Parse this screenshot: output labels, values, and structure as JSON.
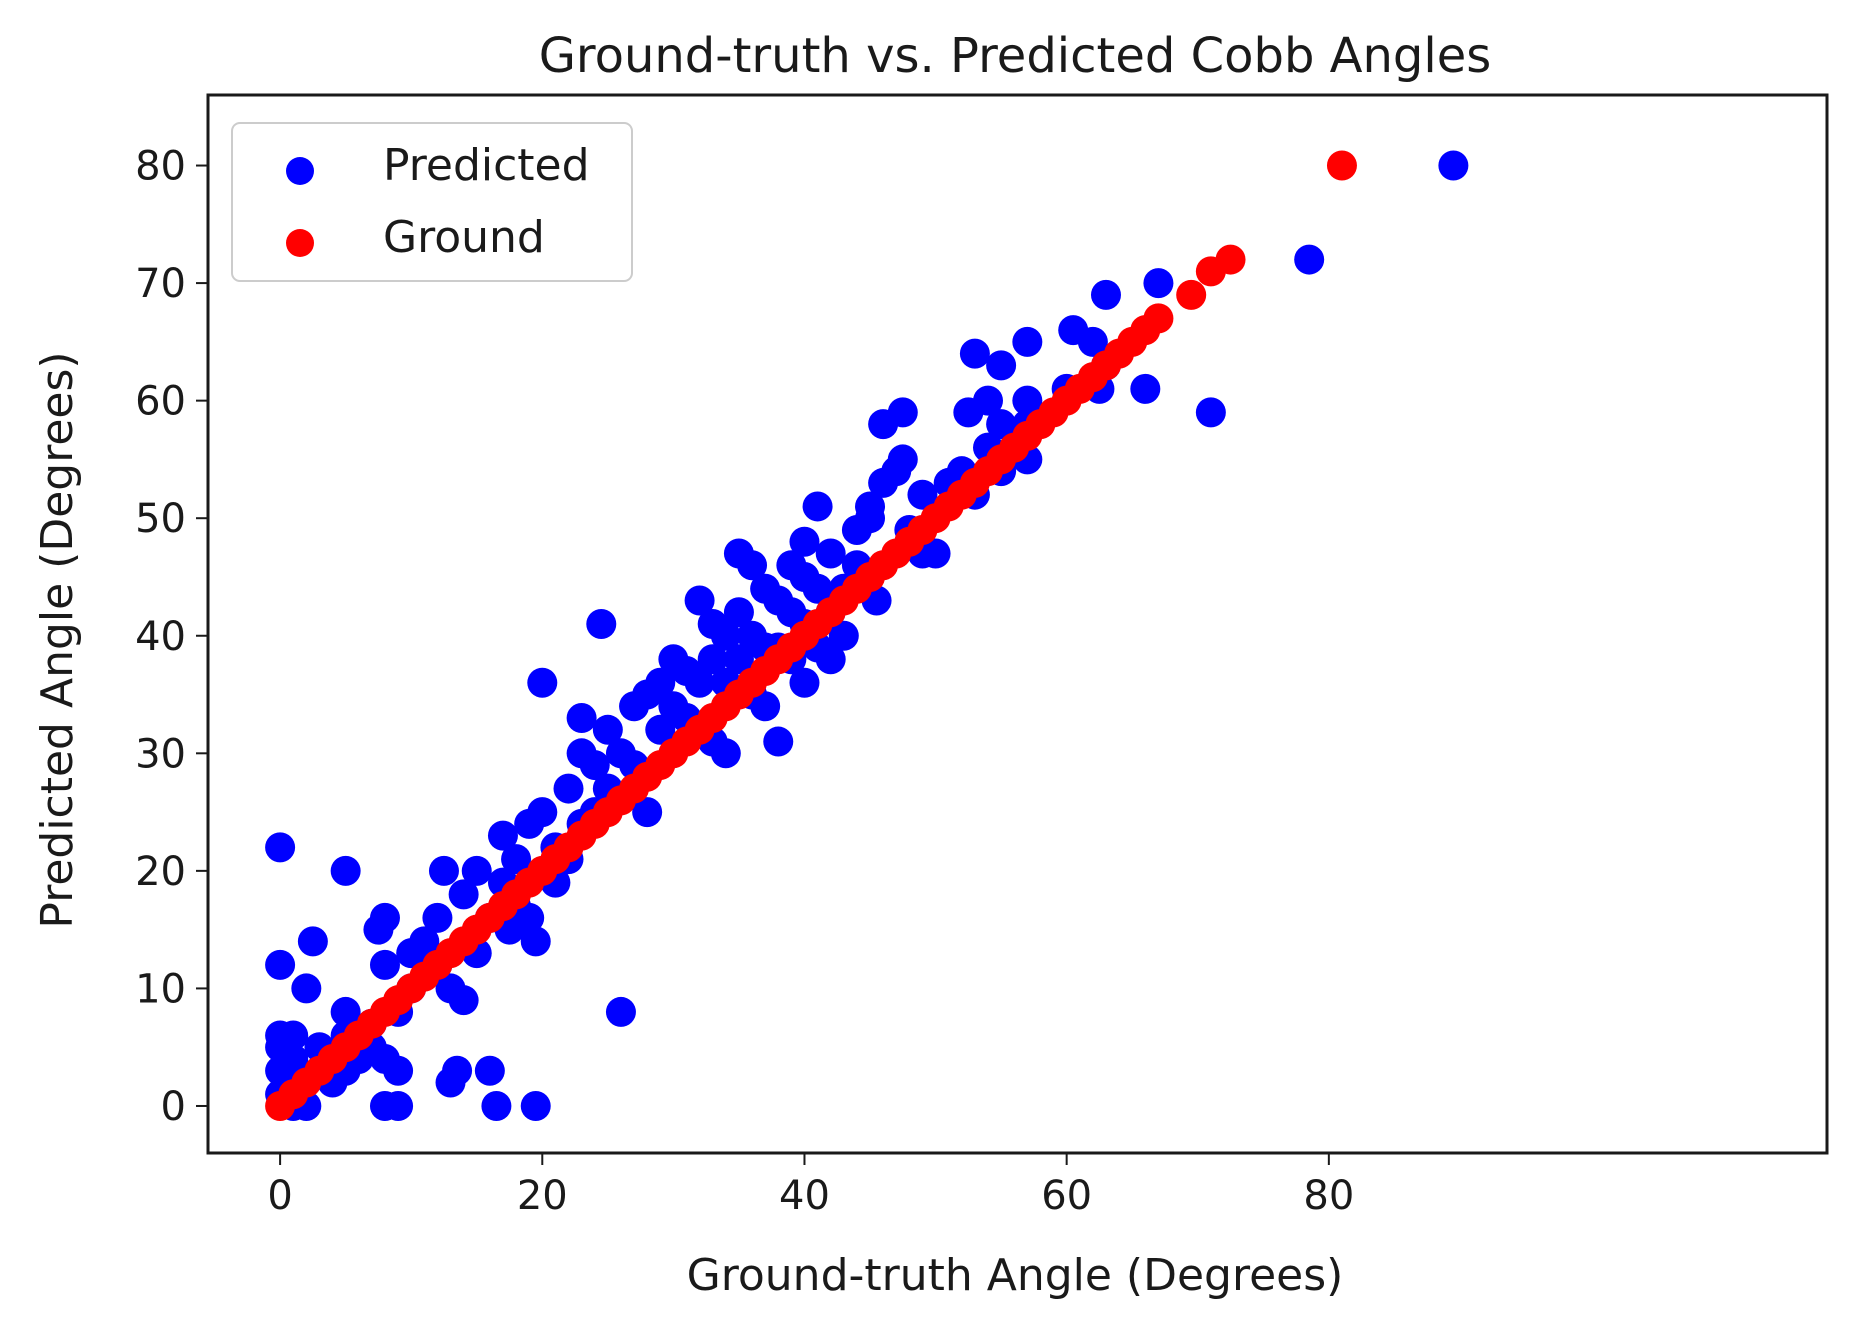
{
  "chart_data": {
    "type": "scatter",
    "title": "Ground-truth vs. Predicted Cobb Angles",
    "xlabel": "Ground-truth Angle (Degrees)",
    "ylabel": "Predicted Angle (Degrees)",
    "xlim": [
      -5.5,
      118
    ],
    "ylim": [
      -4,
      86
    ],
    "xticks": [
      0,
      20,
      40,
      60,
      80
    ],
    "yticks": [
      0,
      10,
      20,
      30,
      40,
      50,
      60,
      70,
      80
    ],
    "grid": false,
    "legend_position": "top-left",
    "series": [
      {
        "name": "Predicted",
        "color": "#0000ff",
        "points": [
          [
            0,
            22
          ],
          [
            0,
            12
          ],
          [
            0,
            6
          ],
          [
            0,
            5
          ],
          [
            0,
            3
          ],
          [
            0,
            1
          ],
          [
            1,
            6
          ],
          [
            1,
            4
          ],
          [
            1,
            2
          ],
          [
            1,
            0
          ],
          [
            2,
            0
          ],
          [
            2,
            10
          ],
          [
            2.5,
            14
          ],
          [
            3,
            5
          ],
          [
            3,
            3
          ],
          [
            4,
            2
          ],
          [
            5,
            20
          ],
          [
            5,
            8
          ],
          [
            5,
            6
          ],
          [
            5,
            3
          ],
          [
            6,
            4
          ],
          [
            7,
            7
          ],
          [
            7,
            5
          ],
          [
            7.5,
            15
          ],
          [
            8,
            16
          ],
          [
            8,
            12
          ],
          [
            8,
            4
          ],
          [
            8,
            0
          ],
          [
            9,
            0
          ],
          [
            9,
            3
          ],
          [
            9,
            8
          ],
          [
            10,
            13
          ],
          [
            10,
            10
          ],
          [
            11,
            14
          ],
          [
            12,
            16
          ],
          [
            12,
            12
          ],
          [
            12.5,
            20
          ],
          [
            13,
            10
          ],
          [
            13,
            2
          ],
          [
            13.5,
            3
          ],
          [
            14,
            9
          ],
          [
            14,
            18
          ],
          [
            15,
            20
          ],
          [
            15,
            13
          ],
          [
            16,
            16
          ],
          [
            16,
            3
          ],
          [
            16.5,
            0
          ],
          [
            17,
            23
          ],
          [
            17,
            19
          ],
          [
            17.5,
            15
          ],
          [
            18,
            21
          ],
          [
            18,
            17
          ],
          [
            19,
            24
          ],
          [
            19,
            16
          ],
          [
            19.5,
            14
          ],
          [
            19.5,
            0
          ],
          [
            20,
            36
          ],
          [
            20,
            25
          ],
          [
            21,
            22
          ],
          [
            21,
            19
          ],
          [
            22,
            27
          ],
          [
            22,
            21
          ],
          [
            23,
            30
          ],
          [
            23,
            24
          ],
          [
            23,
            33
          ],
          [
            24,
            29
          ],
          [
            24,
            25
          ],
          [
            24.5,
            41
          ],
          [
            25,
            32
          ],
          [
            25,
            27
          ],
          [
            26,
            30
          ],
          [
            26,
            8
          ],
          [
            27,
            34
          ],
          [
            27,
            29
          ],
          [
            28,
            35
          ],
          [
            28,
            25
          ],
          [
            29,
            36
          ],
          [
            29,
            32
          ],
          [
            30,
            38
          ],
          [
            30,
            34
          ],
          [
            31,
            37
          ],
          [
            31,
            33
          ],
          [
            32,
            43
          ],
          [
            32,
            36
          ],
          [
            33,
            41
          ],
          [
            33,
            38
          ],
          [
            33,
            31
          ],
          [
            34,
            40
          ],
          [
            34,
            36
          ],
          [
            34,
            30
          ],
          [
            35,
            47
          ],
          [
            35,
            42
          ],
          [
            35,
            38
          ],
          [
            36,
            46
          ],
          [
            36,
            40
          ],
          [
            36,
            35
          ],
          [
            37,
            44
          ],
          [
            37,
            39
          ],
          [
            37,
            34
          ],
          [
            38,
            43
          ],
          [
            38,
            39
          ],
          [
            38,
            31
          ],
          [
            39,
            46
          ],
          [
            39,
            42
          ],
          [
            39,
            38
          ],
          [
            40,
            48
          ],
          [
            40,
            45
          ],
          [
            40,
            41
          ],
          [
            40,
            36
          ],
          [
            41,
            51
          ],
          [
            41,
            44
          ],
          [
            41,
            39
          ],
          [
            42,
            47
          ],
          [
            42,
            42
          ],
          [
            42,
            38
          ],
          [
            43,
            44
          ],
          [
            43,
            40
          ],
          [
            44,
            46
          ],
          [
            44,
            49
          ],
          [
            45,
            50
          ],
          [
            45,
            51
          ],
          [
            45.5,
            43
          ],
          [
            46,
            58
          ],
          [
            46,
            53
          ],
          [
            47,
            54
          ],
          [
            47.5,
            59
          ],
          [
            47.5,
            55
          ],
          [
            48,
            49
          ],
          [
            49,
            52
          ],
          [
            49,
            47
          ],
          [
            50,
            47
          ],
          [
            51,
            53
          ],
          [
            52,
            54
          ],
          [
            52.5,
            59
          ],
          [
            53,
            64
          ],
          [
            53,
            52
          ],
          [
            54,
            56
          ],
          [
            54,
            60
          ],
          [
            55,
            58
          ],
          [
            55,
            63
          ],
          [
            55,
            54
          ],
          [
            56,
            56
          ],
          [
            57,
            65
          ],
          [
            57,
            60
          ],
          [
            57,
            58
          ],
          [
            57,
            55
          ],
          [
            60,
            61
          ],
          [
            60.5,
            66
          ],
          [
            62,
            65
          ],
          [
            62.5,
            61
          ],
          [
            63,
            69
          ],
          [
            63,
            63
          ],
          [
            66,
            61
          ],
          [
            67,
            70
          ],
          [
            71,
            59
          ],
          [
            78.5,
            72
          ],
          [
            89.5,
            80
          ]
        ]
      },
      {
        "name": "Ground",
        "color": "#ff0000",
        "points": [
          [
            0,
            0
          ],
          [
            1,
            1
          ],
          [
            2,
            2
          ],
          [
            3,
            3
          ],
          [
            4,
            4
          ],
          [
            5,
            5
          ],
          [
            6,
            6
          ],
          [
            7,
            7
          ],
          [
            8,
            8
          ],
          [
            9,
            9
          ],
          [
            10,
            10
          ],
          [
            11,
            11
          ],
          [
            12,
            12
          ],
          [
            13,
            13
          ],
          [
            14,
            14
          ],
          [
            15,
            15
          ],
          [
            16,
            16
          ],
          [
            17,
            17
          ],
          [
            18,
            18
          ],
          [
            19,
            19
          ],
          [
            20,
            20
          ],
          [
            21,
            21
          ],
          [
            22,
            22
          ],
          [
            23,
            23
          ],
          [
            24,
            24
          ],
          [
            25,
            25
          ],
          [
            26,
            26
          ],
          [
            27,
            27
          ],
          [
            28,
            28
          ],
          [
            29,
            29
          ],
          [
            30,
            30
          ],
          [
            31,
            31
          ],
          [
            32,
            32
          ],
          [
            33,
            33
          ],
          [
            34,
            34
          ],
          [
            35,
            35
          ],
          [
            36,
            36
          ],
          [
            37,
            37
          ],
          [
            38,
            38
          ],
          [
            39,
            39
          ],
          [
            40,
            40
          ],
          [
            41,
            41
          ],
          [
            42,
            42
          ],
          [
            43,
            43
          ],
          [
            44,
            44
          ],
          [
            45,
            45
          ],
          [
            46,
            46
          ],
          [
            47,
            47
          ],
          [
            48,
            48
          ],
          [
            49,
            49
          ],
          [
            50,
            50
          ],
          [
            51,
            51
          ],
          [
            52,
            52
          ],
          [
            53,
            53
          ],
          [
            54,
            54
          ],
          [
            55,
            55
          ],
          [
            56,
            56
          ],
          [
            57,
            57
          ],
          [
            58,
            58
          ],
          [
            59,
            59
          ],
          [
            60,
            60
          ],
          [
            61,
            61
          ],
          [
            62,
            62
          ],
          [
            63,
            63
          ],
          [
            64,
            64
          ],
          [
            65,
            65
          ],
          [
            66,
            66
          ],
          [
            67,
            67
          ],
          [
            69.5,
            69
          ],
          [
            71,
            71
          ],
          [
            72.5,
            72
          ],
          [
            81,
            80
          ]
        ]
      }
    ]
  }
}
